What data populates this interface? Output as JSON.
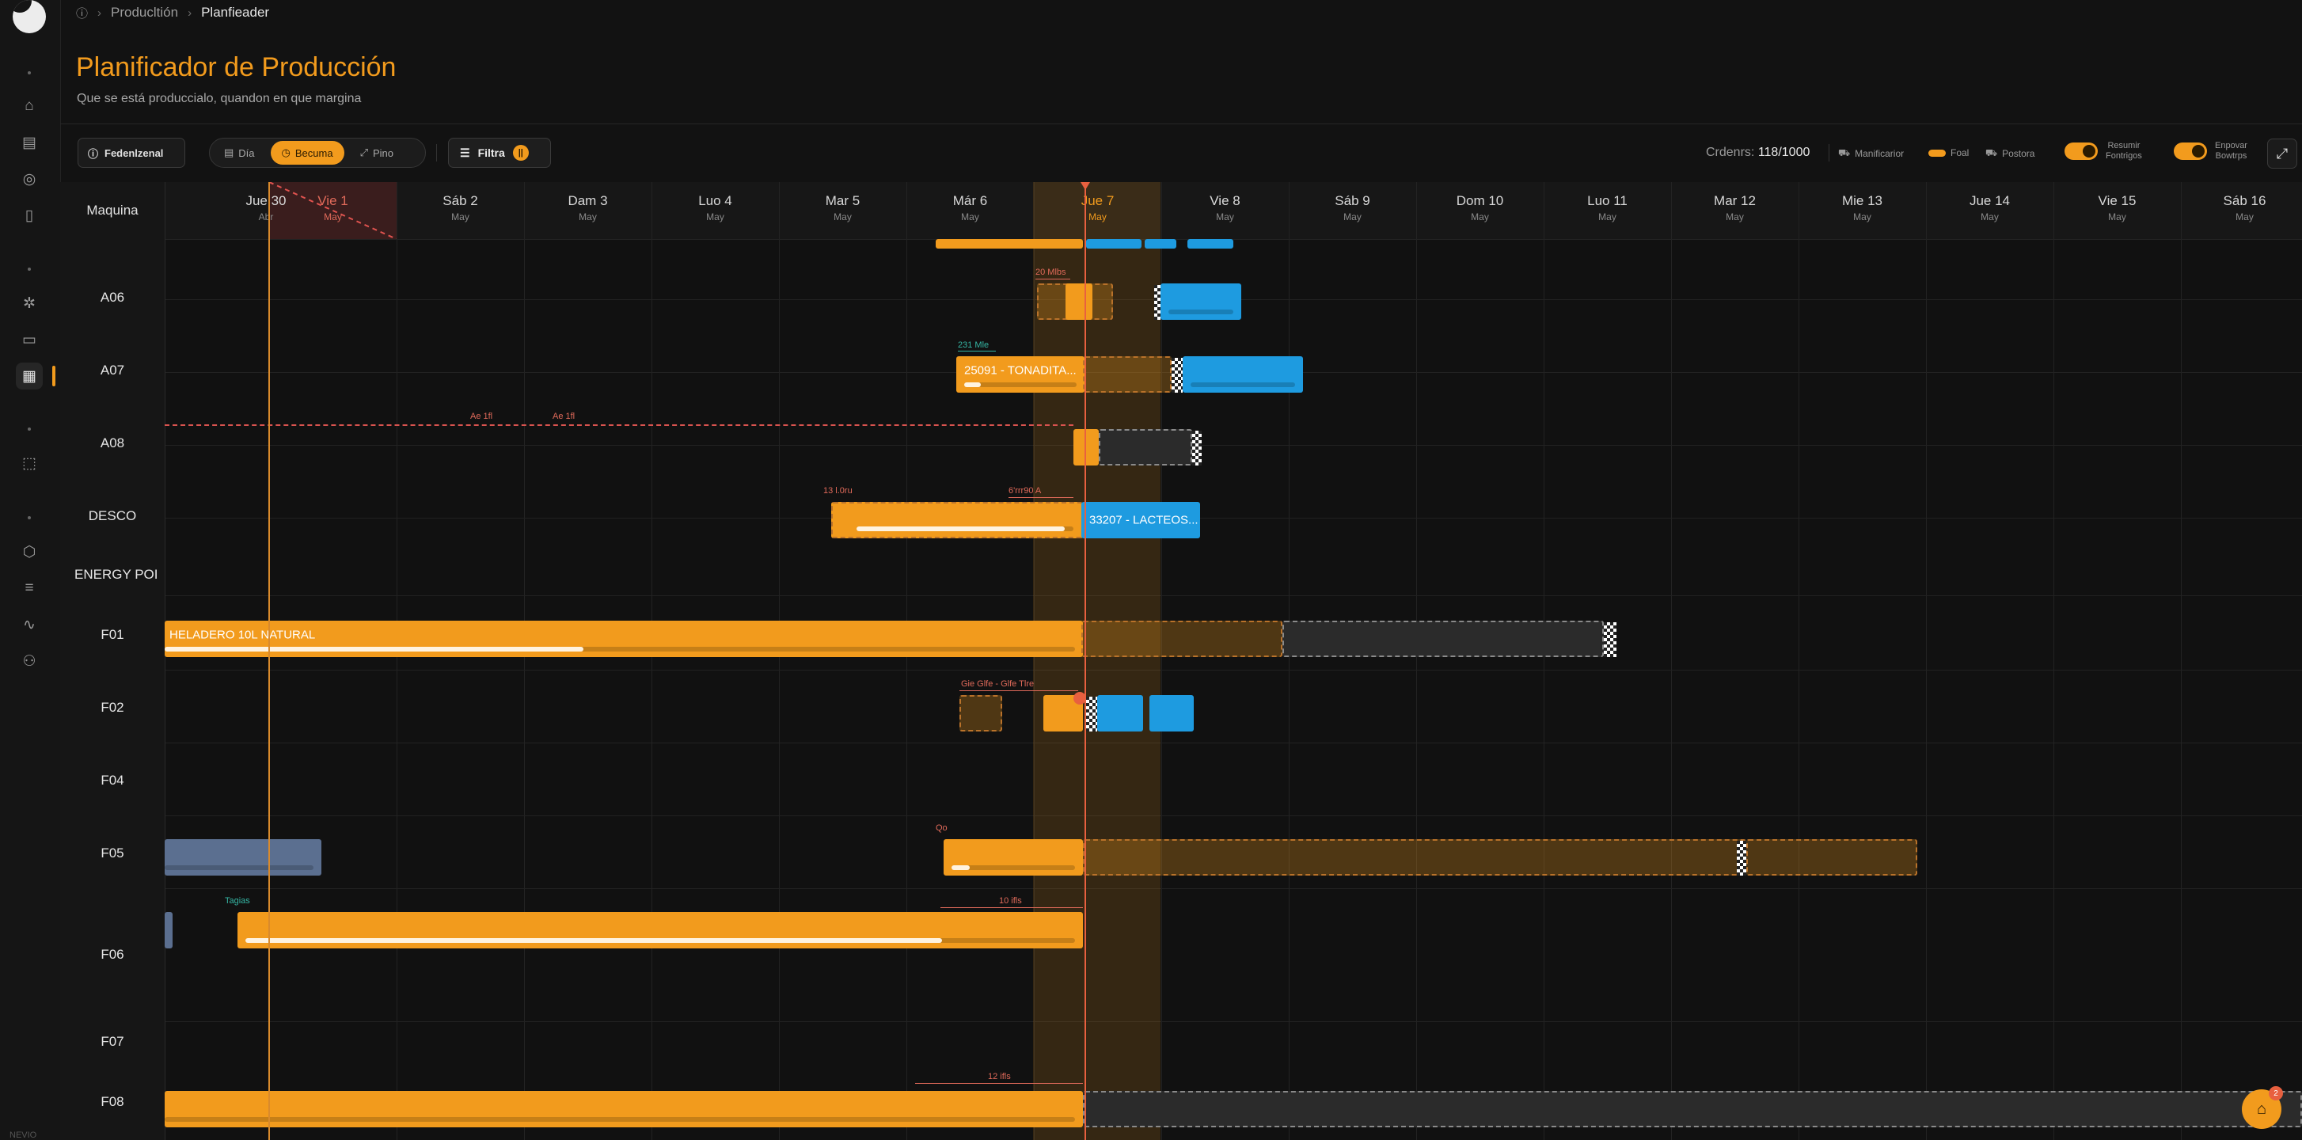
{
  "breadcrumb": {
    "items": [
      "Producltión",
      "Planfieader"
    ]
  },
  "page": {
    "title": "Planificador de Producción",
    "subtitle": "Que se está produccialo, quandon en que margina"
  },
  "toolbar": {
    "fed_label": "Fedenlzenal",
    "views": [
      "Día",
      "Becuma",
      "Pino"
    ],
    "active_view": "Becuma",
    "filter_label": "Filtra",
    "filter_count": "||",
    "orders_label": "Crdenrs:",
    "orders_value": "118/1000",
    "legend": [
      "Manificarior",
      "Foal",
      "Postora"
    ],
    "toggle1_label_line1": "Resumir",
    "toggle1_label_line2": "Fontrigos",
    "toggle2_label_line1": "Enpovar",
    "toggle2_label_line2": "Bowtrps"
  },
  "gantt": {
    "machine_header": "Maquina",
    "days": [
      {
        "d": "Jue 30",
        "m": "Abr"
      },
      {
        "d": "Vie 1",
        "m": "May",
        "state": "holiday"
      },
      {
        "d": "Sáb 2",
        "m": "May"
      },
      {
        "d": "Dam 3",
        "m": "May"
      },
      {
        "d": "Luo 4",
        "m": "May"
      },
      {
        "d": "Mar 5",
        "m": "May"
      },
      {
        "d": "Már 6",
        "m": "May"
      },
      {
        "d": "Jue 7",
        "m": "May",
        "state": "today"
      },
      {
        "d": "Vie 8",
        "m": "May"
      },
      {
        "d": "Sáb 9",
        "m": "May"
      },
      {
        "d": "Dom 10",
        "m": "May"
      },
      {
        "d": "Luo 11",
        "m": "May"
      },
      {
        "d": "Mar 12",
        "m": "May"
      },
      {
        "d": "Mie 13",
        "m": "May"
      },
      {
        "d": "Jue 14",
        "m": "May"
      },
      {
        "d": "Vie 15",
        "m": "May"
      },
      {
        "d": "Sáb 16",
        "m": "May"
      }
    ],
    "machines": [
      "A06",
      "A07",
      "A08",
      "DESCO",
      "ENERGY POI",
      "F01",
      "F02",
      "F04",
      "F05",
      "F06",
      "F07",
      "F08"
    ],
    "bar_labels": {
      "a07": "25091 - TONADITA...",
      "desco": "33207 - LACTEOS...",
      "f01": "HELADERO 10L NATURAL"
    },
    "annotations": {
      "a06_gap": "20 Mlbs",
      "a07_gap": "231 Mle",
      "a08_dep1": "Ae 1fl",
      "a08_dep2": "Ae 1fl",
      "desco_left": "13 l.0ru",
      "desco_right": "6'rrr90 A",
      "f02_gap": "Gie Glfe - Glfe Tlre",
      "f05_tag": "Qo",
      "f06_tag": "Tagias",
      "f06_gap": "10 ifls",
      "f08_gap": "12 ifls"
    }
  },
  "footer": {
    "rail_label": "NEVIO"
  },
  "fab": {
    "badge": "2"
  },
  "colors": {
    "accent": "#f29b1d",
    "blue": "#1e9be0",
    "danger": "#e8603f",
    "bg": "#121212"
  }
}
